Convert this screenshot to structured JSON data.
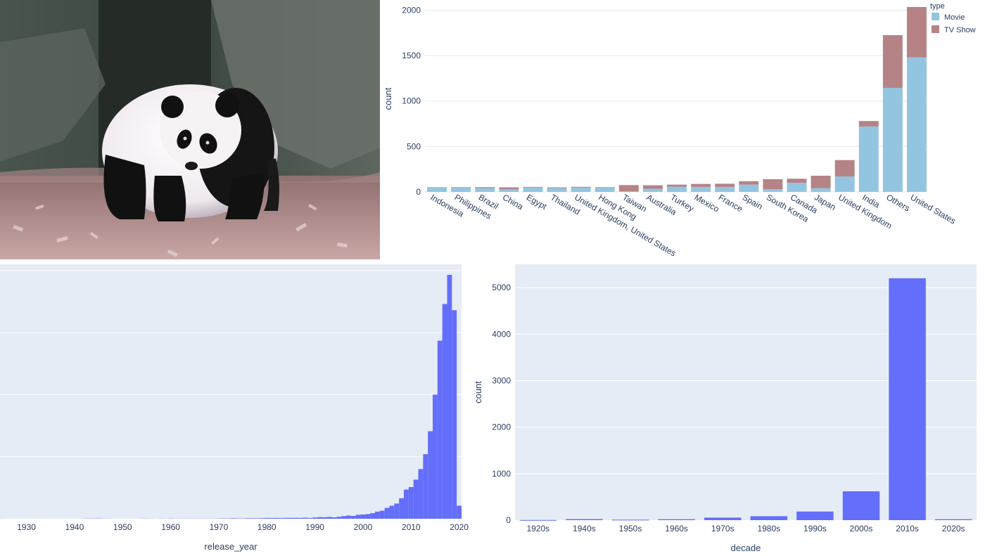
{
  "colors": {
    "plot_bg": "#e5ecf6",
    "grid": "#ffffff",
    "movie": "#93c5e0",
    "tv_show": "#b58386",
    "bar": "#636efa",
    "text": "#2a3f5f"
  },
  "photo": {
    "subject": "giant panda walking on wood chips in front of rock enclosure"
  },
  "chart_data": [
    {
      "type": "bar",
      "stacked": true,
      "categories": [
        "Indonesia",
        "Philippines",
        "Brazil",
        "China",
        "Egypt",
        "Thailand",
        "United Kingdom, United States",
        "Hong Kong",
        "Taiwan",
        "Australia",
        "Turkey",
        "Mexico",
        "France",
        "Spain",
        "South Korea",
        "Canada",
        "Japan",
        "United Kingdom",
        "India",
        "Others",
        "United States"
      ],
      "series": [
        {
          "name": "Movie",
          "values": [
            50,
            50,
            42,
            28,
            48,
            42,
            48,
            50,
            5,
            35,
            58,
            55,
            55,
            80,
            30,
            100,
            40,
            170,
            720,
            1145,
            1480
          ]
        },
        {
          "name": "TV Show",
          "values": [
            2,
            3,
            10,
            22,
            7,
            8,
            8,
            3,
            70,
            38,
            22,
            33,
            35,
            38,
            110,
            45,
            138,
            180,
            60,
            580,
            555
          ]
        }
      ],
      "ylabel": "count",
      "xlabel": "",
      "ylim": [
        0,
        2050
      ],
      "yticks": [
        0,
        500,
        1000,
        1500,
        2000
      ],
      "legend": {
        "title": "type",
        "position": "top-right"
      },
      "grid": true
    },
    {
      "type": "bar",
      "histogram": true,
      "x": [
        1925,
        1942,
        1943,
        1944,
        1945,
        1946,
        1947,
        1954,
        1955,
        1956,
        1958,
        1959,
        1960,
        1961,
        1962,
        1963,
        1964,
        1965,
        1966,
        1967,
        1968,
        1969,
        1970,
        1971,
        1972,
        1973,
        1974,
        1975,
        1976,
        1977,
        1978,
        1979,
        1980,
        1981,
        1982,
        1983,
        1984,
        1985,
        1986,
        1987,
        1988,
        1989,
        1990,
        1991,
        1992,
        1993,
        1994,
        1995,
        1996,
        1997,
        1998,
        1999,
        2000,
        2001,
        2002,
        2003,
        2004,
        2005,
        2006,
        2007,
        2008,
        2009,
        2010,
        2011,
        2012,
        2013,
        2014,
        2015,
        2016,
        2017,
        2018,
        2019,
        2020
      ],
      "values": [
        1,
        2,
        3,
        3,
        4,
        2,
        1,
        2,
        2,
        1,
        2,
        1,
        3,
        1,
        2,
        2,
        2,
        2,
        2,
        2,
        2,
        2,
        3,
        5,
        4,
        8,
        5,
        5,
        8,
        8,
        7,
        9,
        13,
        12,
        13,
        12,
        14,
        14,
        15,
        14,
        17,
        12,
        20,
        26,
        25,
        29,
        22,
        32,
        43,
        52,
        45,
        64,
        68,
        75,
        90,
        115,
        130,
        175,
        210,
        245,
        330,
        470,
        510,
        630,
        800,
        1040,
        1410,
        2000,
        2870,
        3460,
        3930,
        3360,
        210
      ],
      "xlabel": "release_year",
      "ylabel": "",
      "xlim": [
        1924.5,
        2020.5
      ],
      "ylim": [
        0,
        4100
      ],
      "xticks": [
        1930,
        1940,
        1950,
        1960,
        1970,
        1980,
        1990,
        2000,
        2010,
        2020
      ],
      "grid": true
    },
    {
      "type": "bar",
      "categories": [
        "1920s",
        "1940s",
        "1950s",
        "1960s",
        "1970s",
        "1980s",
        "1990s",
        "2000s",
        "2010s",
        "2020s"
      ],
      "values": [
        3,
        22,
        10,
        20,
        55,
        85,
        185,
        620,
        5200,
        20
      ],
      "xlabel": "decade",
      "ylabel": "count",
      "ylim": [
        0,
        5500
      ],
      "yticks": [
        0,
        1000,
        2000,
        3000,
        4000,
        5000
      ],
      "grid": true
    }
  ]
}
